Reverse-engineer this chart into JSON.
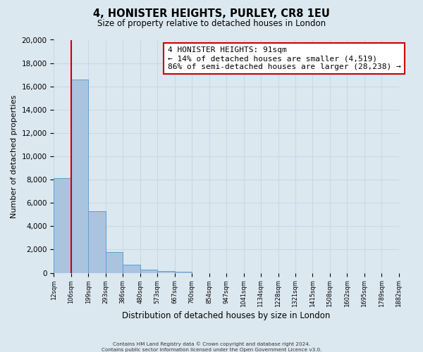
{
  "title": "4, HONISTER HEIGHTS, PURLEY, CR8 1EU",
  "subtitle": "Size of property relative to detached houses in London",
  "bar_values": [
    8150,
    16600,
    5300,
    1800,
    700,
    300,
    150,
    100,
    0,
    0,
    0,
    0,
    0,
    0,
    0,
    0,
    0,
    0,
    0,
    0
  ],
  "bin_labels": [
    "12sqm",
    "106sqm",
    "199sqm",
    "293sqm",
    "386sqm",
    "480sqm",
    "573sqm",
    "667sqm",
    "760sqm",
    "854sqm",
    "947sqm",
    "1041sqm",
    "1134sqm",
    "1228sqm",
    "1321sqm",
    "1415sqm",
    "1508sqm",
    "1602sqm",
    "1695sqm",
    "1789sqm",
    "1882sqm"
  ],
  "bar_color": "#aac4e0",
  "bar_edge_color": "#5a9fd4",
  "ylabel": "Number of detached properties",
  "xlabel": "Distribution of detached houses by size in London",
  "ylim": [
    0,
    20000
  ],
  "yticks": [
    0,
    2000,
    4000,
    6000,
    8000,
    10000,
    12000,
    14000,
    16000,
    18000,
    20000
  ],
  "vline_x": 1,
  "vline_color": "#cc0000",
  "annotation_title": "4 HONISTER HEIGHTS: 91sqm",
  "annotation_line1": "← 14% of detached houses are smaller (4,519)",
  "annotation_line2": "86% of semi-detached houses are larger (28,238) →",
  "annotation_box_color": "#ffffff",
  "annotation_box_edge_color": "#cc0000",
  "footer1": "Contains HM Land Registry data © Crown copyright and database right 2024.",
  "footer2": "Contains public sector information licensed under the Open Government Licence v3.0.",
  "grid_color": "#c8d8e8",
  "background_color": "#dce8f0"
}
